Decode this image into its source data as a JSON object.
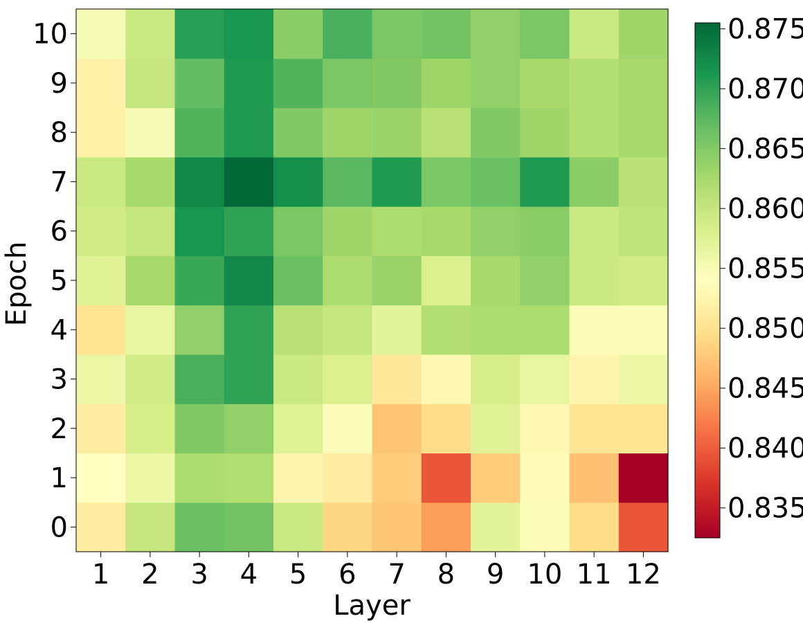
{
  "chart_data": {
    "type": "heatmap",
    "title": "",
    "xlabel": "Layer",
    "ylabel": "Epoch",
    "x_categories": [
      "1",
      "2",
      "3",
      "4",
      "5",
      "6",
      "7",
      "8",
      "9",
      "10",
      "11",
      "12"
    ],
    "y_categories": [
      "0",
      "1",
      "2",
      "3",
      "4",
      "5",
      "6",
      "7",
      "8",
      "9",
      "10"
    ],
    "values": [
      [
        0.8515,
        0.86,
        0.8665,
        0.866,
        0.8595,
        0.849,
        0.8475,
        0.8445,
        0.857,
        0.8545,
        0.8495,
        0.8395
      ],
      [
        0.854,
        0.856,
        0.862,
        0.8615,
        0.8525,
        0.8515,
        0.848,
        0.8395,
        0.848,
        0.8535,
        0.847,
        0.8325
      ],
      [
        0.8515,
        0.8585,
        0.865,
        0.864,
        0.8575,
        0.8545,
        0.8475,
        0.8495,
        0.8575,
        0.853,
        0.8505,
        0.8505
      ],
      [
        0.856,
        0.859,
        0.8685,
        0.87,
        0.8595,
        0.858,
        0.851,
        0.853,
        0.8585,
        0.8565,
        0.8525,
        0.856
      ],
      [
        0.8505,
        0.8565,
        0.864,
        0.87,
        0.861,
        0.86,
        0.857,
        0.8615,
        0.862,
        0.862,
        0.8545,
        0.8545
      ],
      [
        0.8575,
        0.8625,
        0.8695,
        0.8725,
        0.8665,
        0.862,
        0.8635,
        0.858,
        0.8625,
        0.864,
        0.8595,
        0.859
      ],
      [
        0.859,
        0.86,
        0.8715,
        0.87,
        0.8655,
        0.863,
        0.862,
        0.8625,
        0.864,
        0.8645,
        0.8595,
        0.8605
      ],
      [
        0.8595,
        0.8625,
        0.8725,
        0.8755,
        0.872,
        0.8675,
        0.871,
        0.8655,
        0.8665,
        0.871,
        0.8645,
        0.861
      ],
      [
        0.852,
        0.855,
        0.868,
        0.871,
        0.865,
        0.863,
        0.8635,
        0.861,
        0.865,
        0.863,
        0.8615,
        0.8625
      ],
      [
        0.852,
        0.86,
        0.867,
        0.871,
        0.868,
        0.8655,
        0.865,
        0.863,
        0.864,
        0.8625,
        0.8615,
        0.8625
      ],
      [
        0.855,
        0.8595,
        0.8705,
        0.8715,
        0.8645,
        0.8685,
        0.8655,
        0.866,
        0.864,
        0.8655,
        0.8595,
        0.863
      ]
    ],
    "colorbar": {
      "colormap": "RdYlGn",
      "vmin": 0.8325,
      "vmax": 0.8755,
      "ticks": [
        "0.835",
        "0.840",
        "0.845",
        "0.850",
        "0.855",
        "0.860",
        "0.865",
        "0.870",
        "0.875"
      ]
    },
    "grid": false,
    "legend": "colorbar-right"
  }
}
